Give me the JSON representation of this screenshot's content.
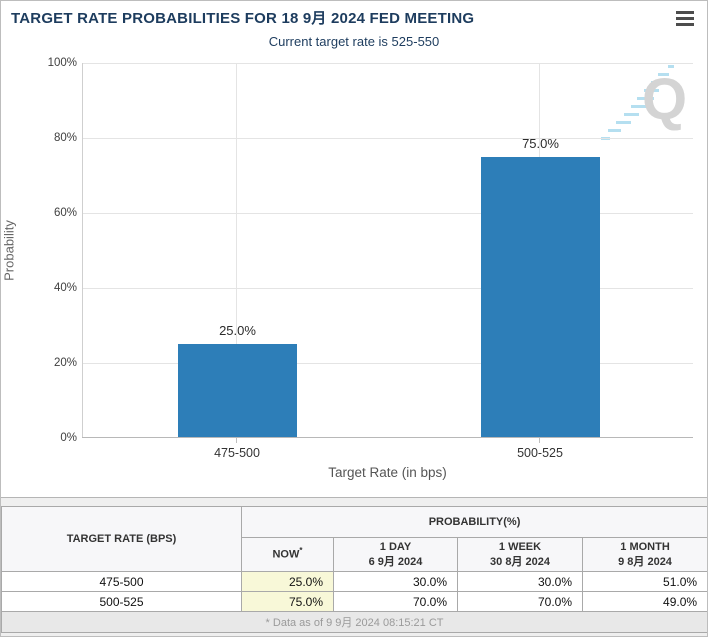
{
  "header": {
    "title": "TARGET RATE PROBABILITIES FOR 18 9月 2024 FED MEETING",
    "subtitle": "Current target rate is 525-550",
    "menu_icon": "hamburger-menu-icon"
  },
  "colors": {
    "bar": "#2d7eb8",
    "title_text": "#1d3c5e",
    "now_highlight": "#f8f8d8",
    "watermark_dash": "#b5dff0"
  },
  "chart_data": {
    "type": "bar",
    "title": "TARGET RATE PROBABILITIES FOR 18 9月 2024 FED MEETING",
    "subtitle": "Current target rate is 525-550",
    "categories": [
      "475-500",
      "500-525"
    ],
    "values": [
      25.0,
      75.0
    ],
    "value_labels": [
      "25.0%",
      "75.0%"
    ],
    "xlabel": "Target Rate (in bps)",
    "ylabel": "Probability",
    "ylim": [
      0,
      100
    ],
    "yticks": [
      "0%",
      "20%",
      "40%",
      "60%",
      "80%",
      "100%"
    ],
    "grid": true,
    "legend": "none"
  },
  "table": {
    "col1_header": "TARGET RATE (BPS)",
    "group_header": "PROBABILITY(%)",
    "columns": [
      {
        "label": "NOW",
        "sup": "*",
        "sublabel": ""
      },
      {
        "label": "1 DAY",
        "sublabel": "6 9月 2024"
      },
      {
        "label": "1 WEEK",
        "sublabel": "30 8月 2024"
      },
      {
        "label": "1 MONTH",
        "sublabel": "9 8月 2024"
      }
    ],
    "rows": [
      {
        "rate": "475-500",
        "now": "25.0%",
        "day": "30.0%",
        "week": "30.0%",
        "month": "51.0%"
      },
      {
        "rate": "500-525",
        "now": "75.0%",
        "day": "70.0%",
        "week": "70.0%",
        "month": "49.0%"
      }
    ],
    "footnote": "* Data as of 9 9月 2024 08:15:21 CT"
  }
}
